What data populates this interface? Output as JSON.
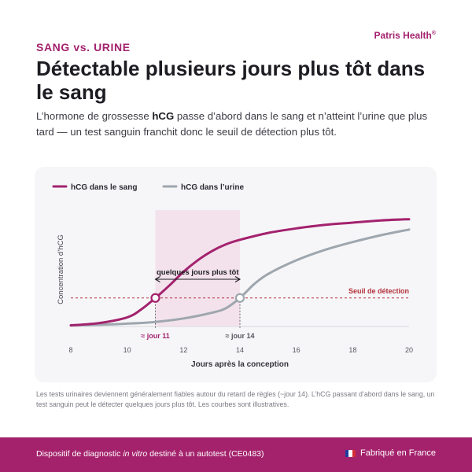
{
  "header": {
    "kicker": "SANG vs. URINE",
    "brand": "Patris Health",
    "brand_mark": "®",
    "title": "Détectable plusieurs jours plus tôt dans le sang",
    "subtitle_before": "L’hormone de grossesse ",
    "subtitle_bold": "hCG",
    "subtitle_after": " passe d’abord dans le sang et n’atteint l’urine que plus tard — un test sanguin franchit donc le seuil de détection plus tôt."
  },
  "chart_data": {
    "type": "line",
    "xlabel": "Jours après la conception",
    "ylabel": "Concentration d’hCG",
    "xlim": [
      8,
      20
    ],
    "ylim": [
      0,
      1
    ],
    "xticks": [
      "8",
      "10",
      "12",
      "14",
      "16",
      "18",
      "20"
    ],
    "xtick_values": [
      8,
      10,
      12,
      14,
      16,
      18,
      20
    ],
    "y_tick_labels": false,
    "legend_position": "top-left",
    "threshold": {
      "value": 0.25,
      "label": "Seuil de détection"
    },
    "highlight_range": {
      "from": 11,
      "to": 14
    },
    "bracket_label": "quelques jours plus tôt",
    "series": [
      {
        "name": "hCG dans le sang",
        "color": "#a3226e",
        "x": [
          8,
          9,
          10,
          10.5,
          11,
          11.5,
          12,
          12.5,
          13,
          13.5,
          14,
          15,
          16,
          17,
          18,
          19,
          20
        ],
        "y": [
          0.01,
          0.03,
          0.08,
          0.15,
          0.25,
          0.36,
          0.48,
          0.58,
          0.66,
          0.72,
          0.76,
          0.82,
          0.86,
          0.89,
          0.91,
          0.93,
          0.94
        ],
        "crossing": {
          "x": 11,
          "label": "≈ jour 11"
        }
      },
      {
        "name": "hCG dans l’urine",
        "color": "#9ea6ae",
        "x": [
          8,
          9,
          10,
          11,
          12,
          13,
          13.5,
          14,
          14.5,
          15,
          16,
          17,
          18,
          19,
          20
        ],
        "y": [
          0.01,
          0.015,
          0.025,
          0.04,
          0.07,
          0.12,
          0.16,
          0.25,
          0.37,
          0.46,
          0.58,
          0.67,
          0.74,
          0.8,
          0.85
        ],
        "crossing": {
          "x": 14,
          "label": "≈ jour 14"
        }
      }
    ]
  },
  "footnote": "Les tests urinaires deviennent généralement fiables autour du retard de règles (~jour 14). L’hCG passant d’abord dans le sang, un test sanguin peut le détecter quelques jours plus tôt. Les courbes sont illustratives.",
  "footer": {
    "left_before": "Dispositif de diagnostic ",
    "left_italic": "in vitro",
    "left_after": " destiné à un autotest (CE0483)",
    "right": "Fabriqué en France",
    "flag_colors": [
      "#1f3d9e",
      "#ffffff",
      "#d62b35"
    ]
  }
}
